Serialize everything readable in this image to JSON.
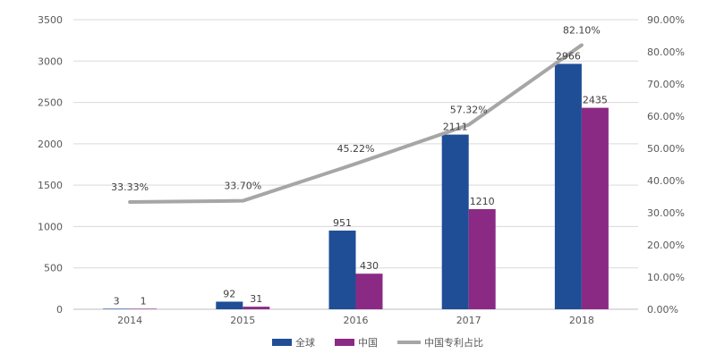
{
  "chart_data": {
    "type": "bar",
    "categories": [
      "2014",
      "2015",
      "2016",
      "2017",
      "2018"
    ],
    "series": [
      {
        "name": "全球",
        "type": "bar",
        "axis": "left",
        "color": "#1f4e96",
        "values": [
          3,
          92,
          951,
          2111,
          2966
        ],
        "labels": [
          "3",
          "92",
          "951",
          "2111",
          "2966"
        ]
      },
      {
        "name": "中国",
        "type": "bar",
        "axis": "left",
        "color": "#8b2a84",
        "values": [
          1,
          31,
          430,
          1210,
          2435
        ],
        "labels": [
          "1",
          "31",
          "430",
          "1210",
          "2435"
        ]
      },
      {
        "name": "中国专利占比",
        "type": "line",
        "axis": "right",
        "color": "#a6a6a6",
        "values": [
          33.33,
          33.7,
          45.22,
          57.32,
          82.1
        ],
        "labels": [
          "33.33%",
          "33.70%",
          "45.22%",
          "57.32%",
          "82.10%"
        ]
      }
    ],
    "y_left": {
      "min": 0,
      "max": 3500,
      "ticks": [
        "0",
        "500",
        "1000",
        "1500",
        "2000",
        "2500",
        "3000",
        "3500"
      ]
    },
    "y_right": {
      "min": 0,
      "max": 90,
      "ticks": [
        "0.00%",
        "10.00%",
        "20.00%",
        "30.00%",
        "40.00%",
        "50.00%",
        "60.00%",
        "70.00%",
        "80.00%",
        "90.00%"
      ]
    },
    "grid": true,
    "legend": "bottom"
  }
}
